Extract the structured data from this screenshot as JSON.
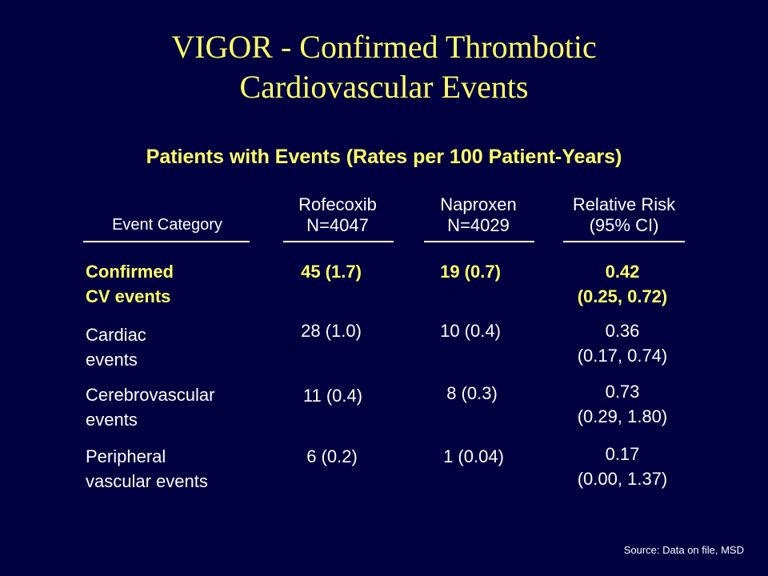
{
  "slide": {
    "title_line1": "VIGOR - Confirmed Thrombotic",
    "title_line2": "Cardiovascular Events",
    "subtitle": "Patients with Events (Rates per 100 Patient-Years)",
    "source": "Source: Data on file, MSD"
  },
  "colors": {
    "background": "#000040",
    "title": "#ffff66",
    "text": "#ffffff"
  },
  "table": {
    "headers": {
      "category": "Event Category",
      "rofecoxib_line1": "Rofecoxib",
      "rofecoxib_line2": "N=4047",
      "naproxen_line1": "Naproxen",
      "naproxen_line2": "N=4029",
      "rr_line1": "Relative Risk",
      "rr_line2": "(95% CI)"
    },
    "rows": [
      {
        "category_line1": "Confirmed",
        "category_line2": "CV events",
        "rofecoxib": "45 (1.7)",
        "naproxen": "19 (0.7)",
        "rr_line1": "0.42",
        "rr_line2": "(0.25, 0.72)"
      },
      {
        "category_line1": "Cardiac",
        "category_line2": "events",
        "rofecoxib": "28 (1.0)",
        "naproxen": "10 (0.4)",
        "rr_line1": "0.36",
        "rr_line2": "(0.17, 0.74)"
      },
      {
        "category_line1": "Cerebrovascular",
        "category_line2": "events",
        "rofecoxib": "11 (0.4)",
        "naproxen": "8 (0.3)",
        "rr_line1": "0.73",
        "rr_line2": "(0.29, 1.80)"
      },
      {
        "category_line1": "Peripheral",
        "category_line2": "vascular events",
        "rofecoxib": "6 (0.2)",
        "naproxen": "1 (0.04)",
        "rr_line1": "0.17",
        "rr_line2": "(0.00, 1.37)"
      }
    ]
  }
}
